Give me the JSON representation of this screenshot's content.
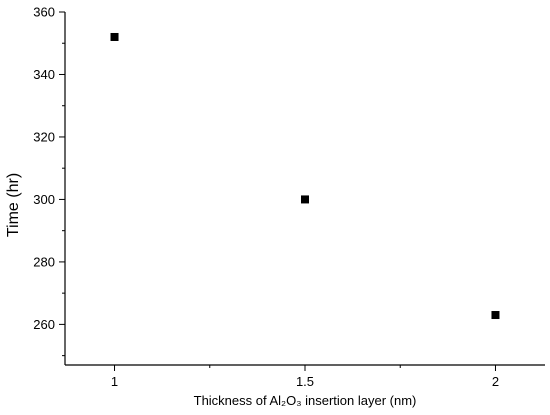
{
  "chart_data": {
    "type": "scatter",
    "title": "",
    "xlabel": "Thickness of Al₂O₃ insertion layer (nm)",
    "ylabel": "Time (hr)",
    "xlim": [
      0.87,
      2.13
    ],
    "ylim": [
      247,
      360
    ],
    "xticks": [
      1,
      1.5,
      2
    ],
    "xtick_labels": [
      "1",
      "1.5",
      "2"
    ],
    "yticks": [
      260,
      280,
      300,
      320,
      340,
      360
    ],
    "ytick_labels": [
      "260",
      "280",
      "300",
      "320",
      "340",
      "360"
    ],
    "grid": false,
    "legend": "none",
    "marker": "square",
    "series": [
      {
        "x": [
          1,
          1.5,
          2
        ],
        "y": [
          352,
          300,
          263
        ]
      }
    ],
    "colors": {
      "marker": "#000000",
      "axis": "#000000"
    }
  }
}
